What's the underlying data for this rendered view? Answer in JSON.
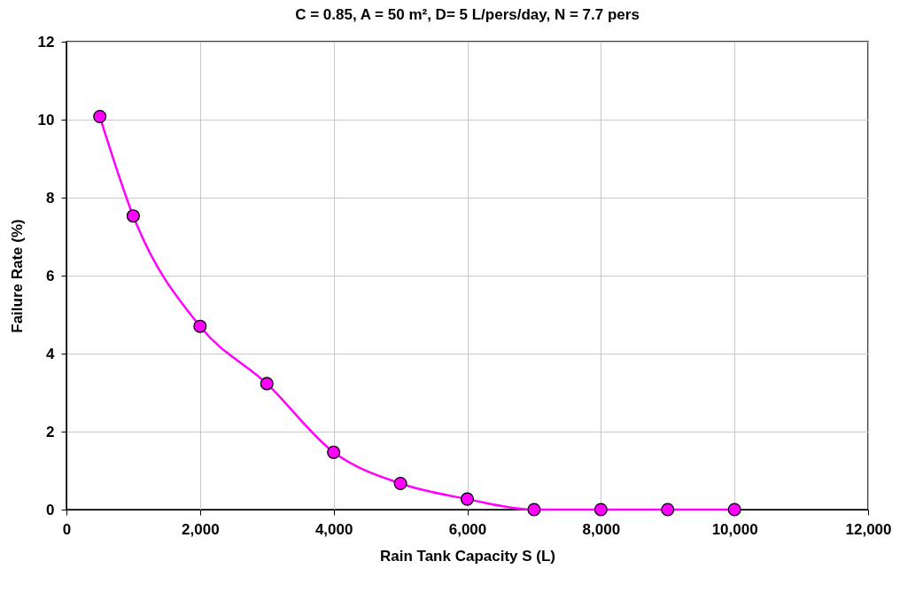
{
  "chart_data": {
    "type": "line",
    "title": "C = 0.85, A = 50 m², D= 5 L/pers/day, N = 7.7 pers",
    "xlabel": "Rain Tank Capacity S (L)",
    "ylabel": "Failure Rate (%)",
    "x": [
      500,
      1000,
      2000,
      3000,
      4000,
      5000,
      6000,
      7000,
      8000,
      9000,
      10000
    ],
    "series": [
      {
        "color": "#ff00ff",
        "values": [
          10.08,
          7.53,
          4.7,
          3.23,
          1.47,
          0.67,
          0.27,
          0,
          0,
          0,
          0
        ]
      }
    ],
    "xlim": [
      0,
      12000
    ],
    "xticks": [
      0,
      {
        "value": 2000,
        "label": "2,000"
      },
      {
        "value": 4000,
        "label": "4,000"
      },
      {
        "value": 6000,
        "label": "6,000"
      },
      {
        "value": 8000,
        "label": "8,000"
      },
      {
        "value": 10000,
        "label": "10,000"
      },
      {
        "value": 12000,
        "label": "12,000"
      }
    ],
    "ylim": [
      0,
      12
    ],
    "yticks": [
      0,
      2,
      4,
      6,
      8,
      10,
      12
    ],
    "grid": true,
    "marker": "circle",
    "line_style": "solid"
  }
}
